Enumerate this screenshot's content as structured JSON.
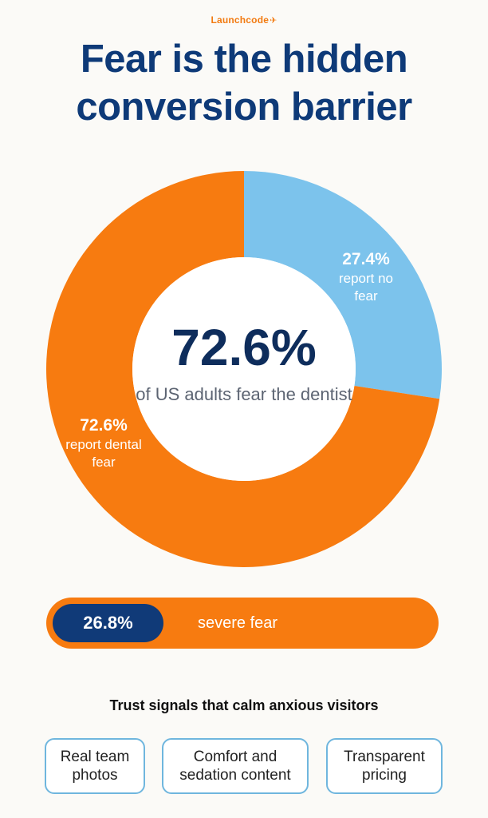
{
  "brand": {
    "name": "Launchcode",
    "mark": "✈"
  },
  "title": "Fear is the hidden conversion barrier",
  "colors": {
    "fear": "#F77B10",
    "no_fear": "#7CC3EC",
    "navy": "#103A78",
    "brand": "#F27A10"
  },
  "chart_data": {
    "type": "pie",
    "series": [
      {
        "label": "report no fear",
        "value": 27.4,
        "value_label": "27.4%",
        "color": "#7CC3EC"
      },
      {
        "label": "report dental fear",
        "value": 72.6,
        "value_label": "72.6%",
        "color": "#F77B10"
      }
    ],
    "center": {
      "value": "72.6%",
      "caption": "of US adults fear the dentist"
    }
  },
  "labels": {
    "no_fear": {
      "pct": "27.4%",
      "text": "report no fear"
    },
    "fear": {
      "pct": "72.6%",
      "text": "report dental fear"
    }
  },
  "severe": {
    "value": 26.8,
    "value_label": "26.8%",
    "label": "severe fear"
  },
  "signals": {
    "heading": "Trust signals that calm anxious visitors",
    "items": [
      "Real team photos",
      "Comfort and sedation content",
      "Transparent pricing"
    ]
  }
}
